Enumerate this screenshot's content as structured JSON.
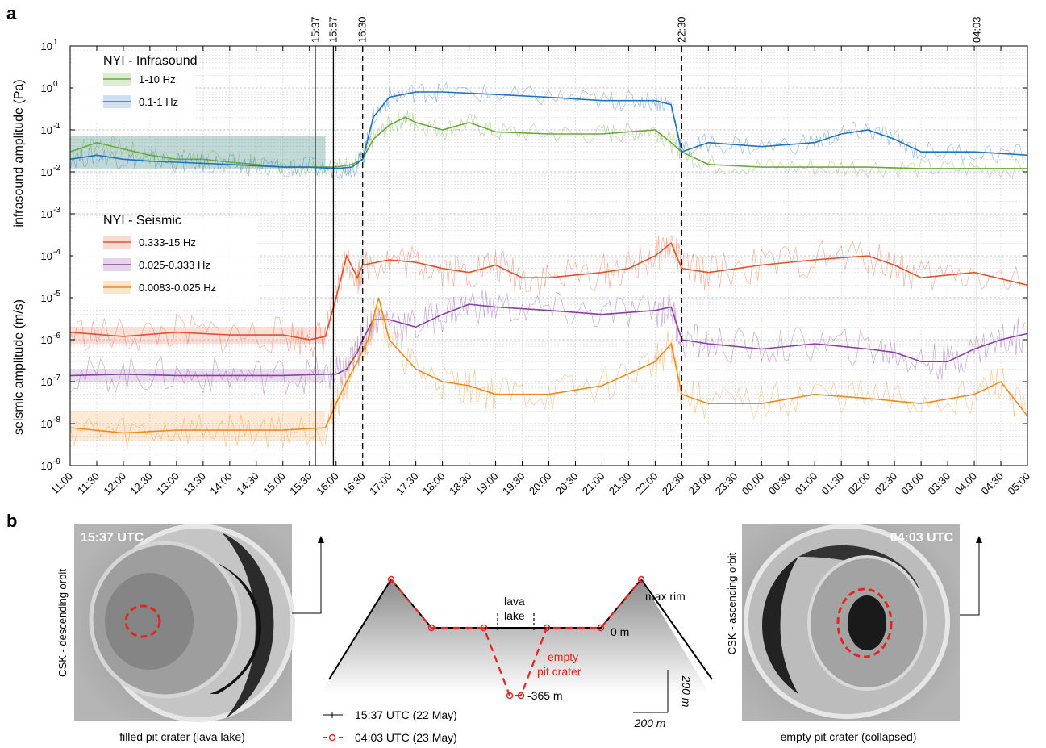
{
  "panel_a_letter": "a",
  "panel_b_letter": "b",
  "chart_data": {
    "type": "line",
    "yscale": "log",
    "ylim": [
      1e-09,
      10
    ],
    "x_ticks": [
      "11:00",
      "11:30",
      "12:00",
      "12:30",
      "13:00",
      "13:30",
      "14:00",
      "14:30",
      "15:00",
      "15:30",
      "16:00",
      "16:30",
      "17:00",
      "17:30",
      "18:00",
      "18:30",
      "19:00",
      "19:30",
      "20:00",
      "20:30",
      "21:00",
      "21:30",
      "22:00",
      "22:30",
      "23:00",
      "23:30",
      "00:00",
      "00:30",
      "01:00",
      "01:30",
      "02:00",
      "02:30",
      "03:00",
      "03:30",
      "04:00",
      "04:30",
      "05:00"
    ],
    "y_ticks": [
      {
        "exp": -9,
        "label": "10",
        "sup": "-9"
      },
      {
        "exp": -8,
        "label": "10",
        "sup": "-8"
      },
      {
        "exp": -7,
        "label": "10",
        "sup": "-7"
      },
      {
        "exp": -6,
        "label": "10",
        "sup": "-6"
      },
      {
        "exp": -5,
        "label": "10",
        "sup": "-5"
      },
      {
        "exp": -4,
        "label": "10",
        "sup": "-4"
      },
      {
        "exp": -3,
        "label": "10",
        "sup": "-3"
      },
      {
        "exp": -2,
        "label": "10",
        "sup": "-2"
      },
      {
        "exp": -1,
        "label": "10",
        "sup": "-1"
      },
      {
        "exp": 0,
        "label": "10",
        "sup": "0"
      },
      {
        "exp": 1,
        "label": "10",
        "sup": "1"
      }
    ],
    "ylabel_upper": "infrasound amplitude (Pa)",
    "ylabel_lower": "seismic amplitude (m/s)",
    "events": [
      {
        "time_hours": 15.617,
        "label": "15:37",
        "style": "solid-grey"
      },
      {
        "time_hours": 15.95,
        "label": "15:57",
        "style": "solid-black"
      },
      {
        "time_hours": 16.5,
        "label": "16:30",
        "style": "dashed"
      },
      {
        "time_hours": 22.5,
        "label": "22:30",
        "style": "dashed"
      },
      {
        "time_hours": 28.05,
        "label": "04:03",
        "style": "solid-grey"
      }
    ],
    "legend_infrasound_title": "NYI - Infrasound",
    "legend_seismic_title": "NYI - Seismic",
    "series": [
      {
        "name": "1-10 Hz",
        "group": "infrasound",
        "color": "#6aaa3a",
        "band": [
          0.012,
          0.07
        ],
        "points": [
          [
            11,
            0.03
          ],
          [
            11.5,
            0.05
          ],
          [
            12,
            0.035
          ],
          [
            12.5,
            0.025
          ],
          [
            13,
            0.02
          ],
          [
            13.5,
            0.02
          ],
          [
            14,
            0.017
          ],
          [
            14.5,
            0.015
          ],
          [
            15,
            0.013
          ],
          [
            15.5,
            0.013
          ],
          [
            16,
            0.013
          ],
          [
            16.3,
            0.015
          ],
          [
            16.5,
            0.02
          ],
          [
            16.7,
            0.06
          ],
          [
            17,
            0.13
          ],
          [
            17.3,
            0.2
          ],
          [
            17.5,
            0.15
          ],
          [
            18,
            0.1
          ],
          [
            18.5,
            0.15
          ],
          [
            19,
            0.09
          ],
          [
            20,
            0.08
          ],
          [
            21,
            0.08
          ],
          [
            21.5,
            0.09
          ],
          [
            22,
            0.1
          ],
          [
            22.3,
            0.05
          ],
          [
            22.5,
            0.03
          ],
          [
            23,
            0.015
          ],
          [
            24,
            0.013
          ],
          [
            25,
            0.013
          ],
          [
            26,
            0.013
          ],
          [
            27,
            0.012
          ],
          [
            28,
            0.012
          ],
          [
            29,
            0.012
          ]
        ]
      },
      {
        "name": "0.1-1 Hz",
        "group": "infrasound",
        "color": "#1f73c0",
        "band": [
          0.012,
          0.07
        ],
        "points": [
          [
            11,
            0.02
          ],
          [
            11.5,
            0.025
          ],
          [
            12,
            0.02
          ],
          [
            12.5,
            0.018
          ],
          [
            13,
            0.017
          ],
          [
            13.5,
            0.016
          ],
          [
            14,
            0.015
          ],
          [
            14.5,
            0.014
          ],
          [
            15,
            0.013
          ],
          [
            15.5,
            0.013
          ],
          [
            16,
            0.012
          ],
          [
            16.3,
            0.013
          ],
          [
            16.5,
            0.02
          ],
          [
            16.7,
            0.2
          ],
          [
            17,
            0.6
          ],
          [
            17.5,
            0.8
          ],
          [
            18,
            0.8
          ],
          [
            19,
            0.7
          ],
          [
            20,
            0.6
          ],
          [
            21,
            0.5
          ],
          [
            21.5,
            0.5
          ],
          [
            22,
            0.5
          ],
          [
            22.3,
            0.4
          ],
          [
            22.5,
            0.03
          ],
          [
            23,
            0.05
          ],
          [
            24,
            0.04
          ],
          [
            25,
            0.05
          ],
          [
            25.5,
            0.08
          ],
          [
            26,
            0.1
          ],
          [
            26.5,
            0.06
          ],
          [
            27,
            0.03
          ],
          [
            28,
            0.03
          ],
          [
            29,
            0.025
          ]
        ]
      },
      {
        "name": "0.333-15 Hz",
        "group": "seismic",
        "color": "#e2522b",
        "band": [
          8e-07,
          2e-06
        ],
        "points": [
          [
            11,
            1.5e-06
          ],
          [
            12,
            1.2e-06
          ],
          [
            13,
            1.5e-06
          ],
          [
            14,
            1.3e-06
          ],
          [
            15,
            1.3e-06
          ],
          [
            15.5,
            1e-06
          ],
          [
            15.8,
            1.2e-06
          ],
          [
            16,
            1e-05
          ],
          [
            16.2,
            0.0001
          ],
          [
            16.4,
            3e-05
          ],
          [
            16.5,
            6e-05
          ],
          [
            17,
            8e-05
          ],
          [
            17.5,
            7e-05
          ],
          [
            18,
            5e-05
          ],
          [
            18.5,
            4e-05
          ],
          [
            19,
            6e-05
          ],
          [
            19.5,
            3e-05
          ],
          [
            20,
            3e-05
          ],
          [
            21,
            4e-05
          ],
          [
            21.5,
            5e-05
          ],
          [
            22,
            0.0001
          ],
          [
            22.3,
            0.0002
          ],
          [
            22.5,
            5e-05
          ],
          [
            23,
            4e-05
          ],
          [
            24,
            6e-05
          ],
          [
            25,
            8e-05
          ],
          [
            26,
            0.0001
          ],
          [
            26.5,
            6e-05
          ],
          [
            27,
            3e-05
          ],
          [
            28,
            4e-05
          ],
          [
            29,
            2e-05
          ]
        ]
      },
      {
        "name": "0.025-0.333 Hz",
        "group": "seismic",
        "color": "#8a3fa8",
        "band": [
          1e-07,
          2e-07
        ],
        "points": [
          [
            11,
            1.4e-07
          ],
          [
            12,
            1.5e-07
          ],
          [
            13,
            1.4e-07
          ],
          [
            14,
            1.4e-07
          ],
          [
            15,
            1.4e-07
          ],
          [
            15.8,
            1.5e-07
          ],
          [
            16,
            1.5e-07
          ],
          [
            16.2,
            2e-07
          ],
          [
            16.4,
            5e-07
          ],
          [
            16.5,
            1e-06
          ],
          [
            16.7,
            3e-06
          ],
          [
            17,
            3e-06
          ],
          [
            17.5,
            2e-06
          ],
          [
            18,
            4e-06
          ],
          [
            18.5,
            7e-06
          ],
          [
            19,
            6e-06
          ],
          [
            20,
            5e-06
          ],
          [
            21,
            4e-06
          ],
          [
            22,
            5e-06
          ],
          [
            22.3,
            6e-06
          ],
          [
            22.5,
            1e-06
          ],
          [
            23,
            8e-07
          ],
          [
            24,
            6e-07
          ],
          [
            25,
            8e-07
          ],
          [
            26,
            6e-07
          ],
          [
            26.5,
            5e-07
          ],
          [
            27,
            3e-07
          ],
          [
            27.5,
            3e-07
          ],
          [
            28,
            6e-07
          ],
          [
            28.5,
            1e-06
          ],
          [
            29,
            1.4e-06
          ]
        ]
      },
      {
        "name": "0.0083-0.025 Hz",
        "group": "seismic",
        "color": "#f08a1c",
        "band": [
          4e-09,
          2e-08
        ],
        "points": [
          [
            11,
            8e-09
          ],
          [
            12,
            6e-09
          ],
          [
            13,
            7e-09
          ],
          [
            14,
            7e-09
          ],
          [
            15,
            7e-09
          ],
          [
            15.8,
            8e-09
          ],
          [
            16,
            3e-08
          ],
          [
            16.2,
            1e-07
          ],
          [
            16.4,
            3e-07
          ],
          [
            16.6,
            1e-06
          ],
          [
            16.8,
            1e-05
          ],
          [
            17,
            1e-06
          ],
          [
            17.5,
            2e-07
          ],
          [
            18,
            1e-07
          ],
          [
            18.5,
            8e-08
          ],
          [
            19,
            5e-08
          ],
          [
            20,
            5e-08
          ],
          [
            21,
            8e-08
          ],
          [
            22,
            3e-07
          ],
          [
            22.3,
            8e-07
          ],
          [
            22.5,
            5e-08
          ],
          [
            23,
            3e-08
          ],
          [
            24,
            3e-08
          ],
          [
            25,
            5e-08
          ],
          [
            26,
            4e-08
          ],
          [
            27,
            3e-08
          ],
          [
            28,
            5e-08
          ],
          [
            28.5,
            1e-07
          ],
          [
            29,
            1.5e-08
          ]
        ]
      }
    ]
  },
  "panel_b": {
    "left_photo": {
      "time": "15:37 UTC",
      "side_label": "CSK - descending orbit",
      "caption": "filled pit crater (lava lake)"
    },
    "right_photo": {
      "time": "04:03 UTC",
      "side_label": "CSK - ascending orbit",
      "caption": "empty pit crater (collapsed)"
    },
    "diagram": {
      "max_rim": "max rim",
      "lava_line1": "lava",
      "lava_line2": "lake",
      "zero": "0 m",
      "empty_line1": "empty",
      "empty_line2": "pit crater",
      "depth": "-365 m",
      "scale_v": "200 m",
      "scale_h": "200 m",
      "legend_black": "15:37 UTC (22 May)",
      "legend_red": "04:03 UTC (23 May)",
      "depth_m": -365
    }
  }
}
